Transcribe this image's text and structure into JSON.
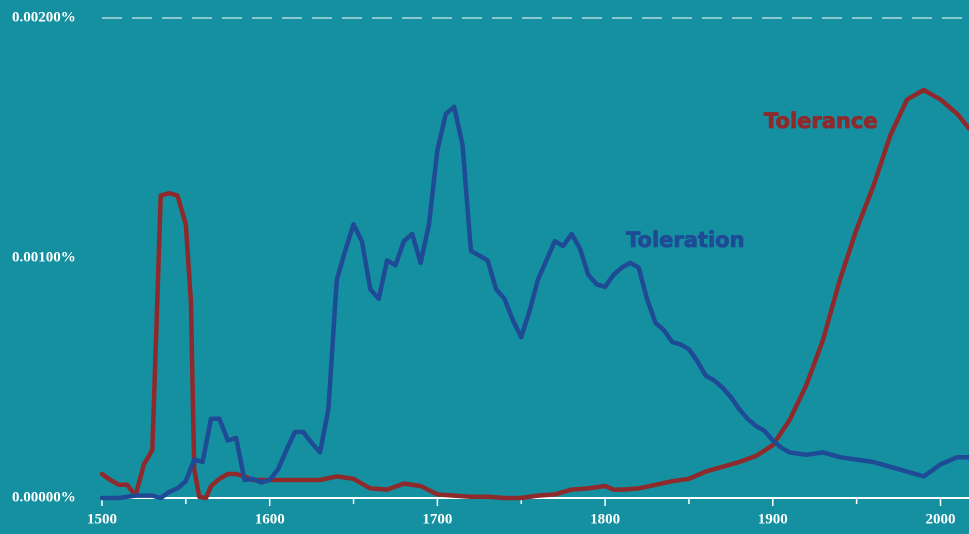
{
  "chart_data": {
    "type": "line",
    "xlim": [
      1500,
      2017
    ],
    "ylim": [
      0,
      0.002
    ],
    "xticks": [
      1500,
      1600,
      1700,
      1800,
      1900,
      2000
    ],
    "xminorticks": [
      1550,
      1650,
      1750,
      1850,
      1950
    ],
    "yticks": [
      {
        "value": 0,
        "label": "0.00000%"
      },
      {
        "value": 0.001,
        "label": "0.00100%"
      },
      {
        "value": 0.002,
        "label": "0.00200%"
      }
    ],
    "series": [
      {
        "name": "Tolerance",
        "color": "#8e2a2c",
        "x": [
          1500,
          1505,
          1510,
          1515,
          1520,
          1525,
          1530,
          1533,
          1535,
          1540,
          1545,
          1550,
          1553,
          1555,
          1558,
          1562,
          1565,
          1570,
          1575,
          1580,
          1585,
          1590,
          1600,
          1610,
          1620,
          1630,
          1640,
          1650,
          1660,
          1670,
          1680,
          1690,
          1700,
          1710,
          1720,
          1730,
          1740,
          1750,
          1760,
          1770,
          1780,
          1790,
          1800,
          1805,
          1810,
          1820,
          1830,
          1840,
          1850,
          1860,
          1870,
          1880,
          1890,
          1900,
          1910,
          1920,
          1930,
          1940,
          1950,
          1960,
          1970,
          1980,
          1990,
          2000,
          2010,
          2017
        ],
        "values": [
          0.0001,
          7.5e-05,
          5.5e-05,
          5.5e-05,
          1e-05,
          0.00014,
          0.0002,
          0.00082,
          0.00126,
          0.00127,
          0.00126,
          0.00114,
          0.00082,
          0.00012,
          5e-06,
          0,
          5e-05,
          8e-05,
          0.0001,
          0.0001,
          9e-05,
          7.5e-05,
          7.5e-05,
          7.5e-05,
          7.5e-05,
          7.5e-05,
          9e-05,
          8e-05,
          4e-05,
          3.5e-05,
          6e-05,
          5e-05,
          1.5e-05,
          1e-05,
          5e-06,
          5e-06,
          0,
          0,
          1e-05,
          1.5e-05,
          3.5e-05,
          4e-05,
          5e-05,
          3.5e-05,
          3.5e-05,
          4e-05,
          5.5e-05,
          7e-05,
          8e-05,
          0.00011,
          0.00013,
          0.00015,
          0.000175,
          0.00022,
          0.000325,
          0.00047,
          0.00066,
          0.00091,
          0.00112,
          0.0013,
          0.00151,
          0.00166,
          0.0017,
          0.00166,
          0.0016,
          0.00154
        ]
      },
      {
        "name": "Toleration",
        "color": "#1f4a96",
        "x": [
          1500,
          1510,
          1520,
          1530,
          1535,
          1540,
          1545,
          1550,
          1555,
          1560,
          1565,
          1570,
          1575,
          1580,
          1585,
          1590,
          1595,
          1600,
          1605,
          1610,
          1615,
          1620,
          1625,
          1630,
          1635,
          1640,
          1645,
          1650,
          1655,
          1660,
          1665,
          1670,
          1675,
          1680,
          1685,
          1690,
          1695,
          1700,
          1705,
          1710,
          1715,
          1720,
          1725,
          1730,
          1735,
          1740,
          1745,
          1750,
          1755,
          1760,
          1765,
          1770,
          1775,
          1780,
          1785,
          1790,
          1795,
          1800,
          1805,
          1810,
          1815,
          1820,
          1825,
          1830,
          1835,
          1840,
          1845,
          1850,
          1855,
          1860,
          1865,
          1870,
          1875,
          1880,
          1885,
          1890,
          1895,
          1900,
          1905,
          1910,
          1920,
          1930,
          1940,
          1950,
          1960,
          1970,
          1980,
          1990,
          2000,
          2010,
          2017
        ],
        "values": [
          0,
          0,
          1e-05,
          1e-05,
          0,
          2.5e-05,
          4e-05,
          7e-05,
          0.00016,
          0.00015,
          0.00033,
          0.00033,
          0.00024,
          0.00025,
          7.5e-05,
          8e-05,
          6.5e-05,
          7.5e-05,
          0.00012,
          0.0002,
          0.000275,
          0.000275,
          0.00023,
          0.00019,
          0.00037,
          0.00091,
          0.00103,
          0.00114,
          0.00107,
          0.00087,
          0.00083,
          0.00099,
          0.00097,
          0.00107,
          0.0011,
          0.00098,
          0.00114,
          0.00145,
          0.0016,
          0.00163,
          0.00147,
          0.00103,
          0.00101,
          0.00099,
          0.00087,
          0.00083,
          0.00074,
          0.00067,
          0.00078,
          0.00091,
          0.00099,
          0.00107,
          0.00105,
          0.0011,
          0.00104,
          0.00093,
          0.00089,
          0.00088,
          0.00093,
          0.00096,
          0.00098,
          0.00096,
          0.00083,
          0.00073,
          0.0007,
          0.00065,
          0.00064,
          0.00062,
          0.00057,
          0.00051,
          0.00049,
          0.00046,
          0.00042,
          0.00037,
          0.00033,
          0.0003,
          0.00028,
          0.00024,
          0.00021,
          0.00019,
          0.00018,
          0.00019,
          0.00017,
          0.00016,
          0.00015,
          0.00013,
          0.00011,
          9e-05,
          0.00014,
          0.00017,
          0.00017
        ]
      }
    ]
  }
}
